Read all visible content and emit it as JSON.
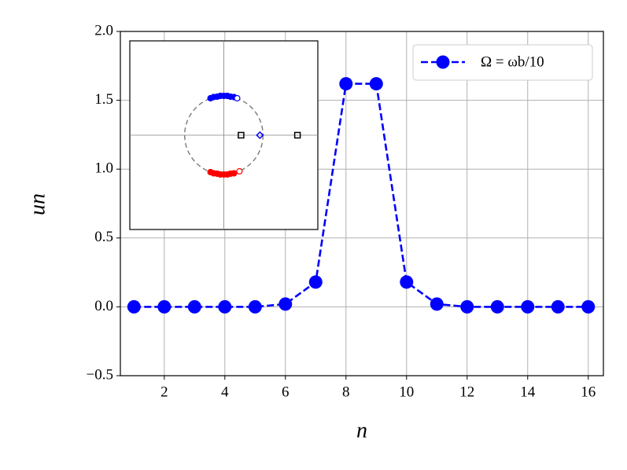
{
  "chart_data": [
    {
      "type": "line",
      "x_label": "n",
      "y_label": "un",
      "x": [
        1,
        2,
        3,
        4,
        5,
        6,
        7,
        8,
        9,
        10,
        11,
        12,
        13,
        14,
        15,
        16
      ],
      "series": [
        {
          "name": "Ω = ωb/10",
          "color": "#0000ff",
          "values": [
            0,
            0,
            0,
            0,
            0,
            0.02,
            0.18,
            1.62,
            1.62,
            0.18,
            0.02,
            0,
            0,
            0,
            0,
            0
          ]
        }
      ],
      "xlim": [
        0.55,
        16.5
      ],
      "ylim": [
        -0.5,
        2.0
      ],
      "xticks": [
        2,
        4,
        6,
        8,
        10,
        12,
        14,
        16
      ],
      "yticks": [
        {
          "value": -0.5,
          "label": "−0.5"
        },
        {
          "value": 0,
          "label": "0.0"
        },
        0.5,
        {
          "value": 1,
          "label": "1.0"
        },
        1.5,
        {
          "value": 2,
          "label": "2.0"
        }
      ],
      "grid": true,
      "legend": "upper right"
    },
    {
      "type": "scatter",
      "xlim": [
        -2.4,
        2.4
      ],
      "ylim": [
        -2.4,
        2.4
      ],
      "hline": 0,
      "vline": 0,
      "circle": {
        "r": 1,
        "color": "#808080"
      },
      "series": [
        {
          "color": "#0000ff",
          "marker": "filled",
          "x": [
            -0.34,
            -0.26,
            -0.17,
            -0.09,
            0,
            0.09,
            0.17,
            0.26
          ],
          "values": [
            0.94,
            0.97,
            0.98,
            1.0,
            1.0,
            1.0,
            0.98,
            0.97
          ]
        },
        {
          "color": "#0000ff",
          "marker": "open",
          "x": [
            0.34
          ],
          "values": [
            0.94
          ]
        },
        {
          "color": "#ff0000",
          "marker": "filled",
          "x": [
            -0.34,
            -0.26,
            -0.17,
            -0.09,
            0,
            0.09,
            0.17,
            0.26
          ],
          "values": [
            -0.94,
            -0.97,
            -0.98,
            -1.0,
            -1.0,
            -1.0,
            -0.98,
            -0.97
          ]
        },
        {
          "color": "#ff0000",
          "marker": "open",
          "x": [
            0.4
          ],
          "values": [
            -0.92
          ]
        },
        {
          "color": "#0000ff",
          "marker": "diamond",
          "x": [
            0.92
          ],
          "values": [
            0
          ]
        },
        {
          "color": "#000000",
          "marker": "square",
          "x": [
            0.44,
            1.88
          ],
          "values": [
            0,
            0
          ]
        }
      ]
    }
  ]
}
